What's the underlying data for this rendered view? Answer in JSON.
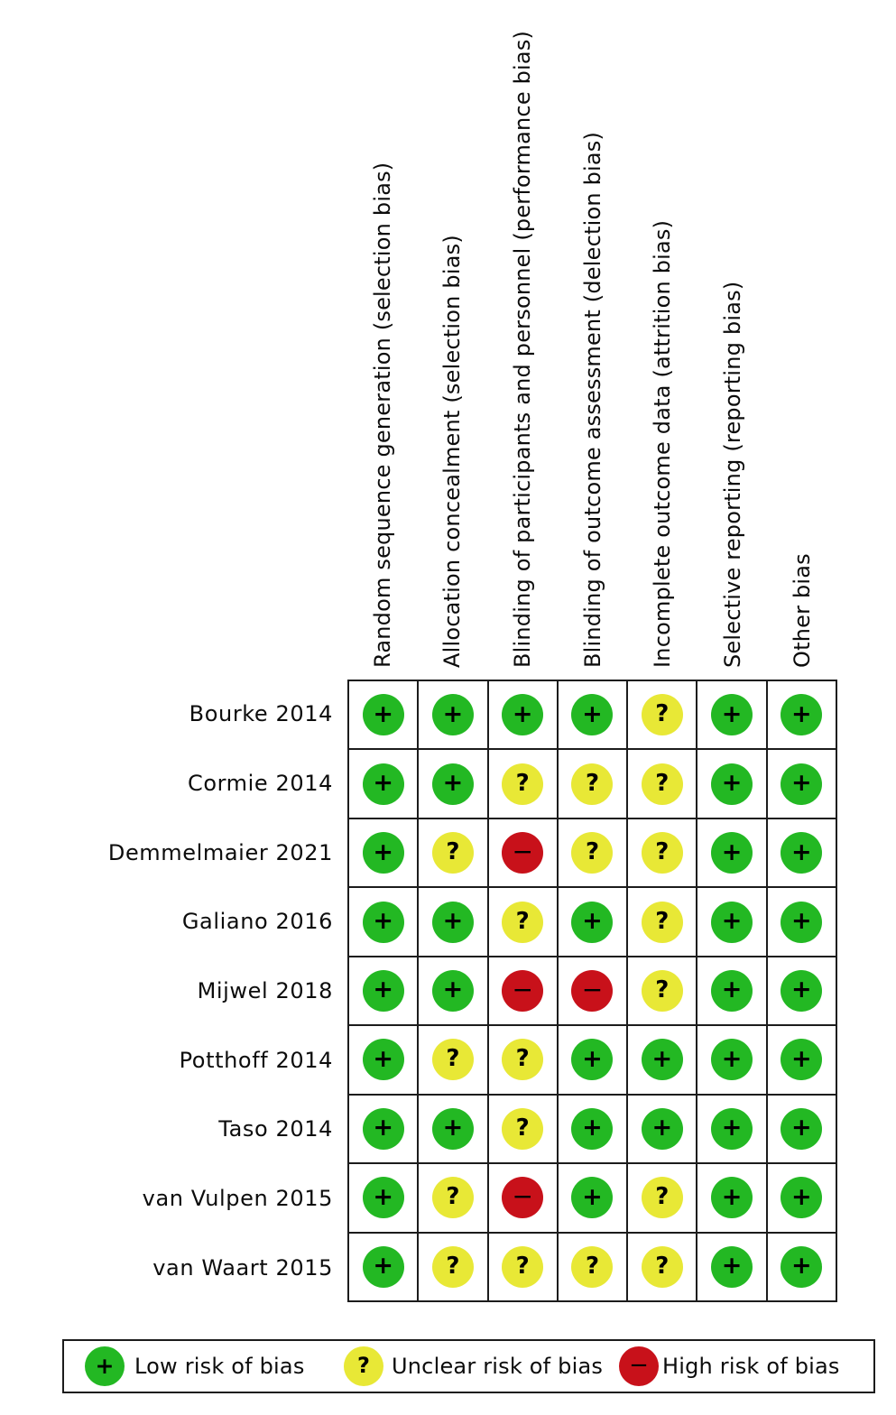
{
  "chart_data": {
    "type": "heatmap",
    "columns": [
      "Random sequence generation (selection bias)",
      "Allocation concealment (selection bias)",
      "Blinding of participants and personnel (performance bias)",
      "Blinding of outcome assessment (delection bias)",
      "Incomplete outcome data (attrition bias)",
      "Selective reporting (reporting bias)",
      "Other bias"
    ],
    "rows": [
      "Bourke 2014",
      "Cormie 2014",
      "Demmelmaier 2021",
      "Galiano 2016",
      "Mijwel 2018",
      "Potthoff 2014",
      "Taso 2014",
      "van Vulpen 2015",
      "van Waart 2015"
    ],
    "values": [
      [
        "+",
        "+",
        "+",
        "+",
        "?",
        "+",
        "+"
      ],
      [
        "+",
        "+",
        "?",
        "?",
        "?",
        "+",
        "+"
      ],
      [
        "+",
        "?",
        "-",
        "?",
        "?",
        "+",
        "+"
      ],
      [
        "+",
        "+",
        "?",
        "+",
        "?",
        "+",
        "+"
      ],
      [
        "+",
        "+",
        "-",
        "-",
        "?",
        "+",
        "+"
      ],
      [
        "+",
        "?",
        "?",
        "+",
        "+",
        "+",
        "+"
      ],
      [
        "+",
        "+",
        "?",
        "+",
        "+",
        "+",
        "+"
      ],
      [
        "+",
        "?",
        "-",
        "+",
        "?",
        "+",
        "+"
      ],
      [
        "+",
        "?",
        "?",
        "?",
        "?",
        "+",
        "+"
      ]
    ],
    "judgement_names": {
      "+": "low-risk",
      "?": "unclear-risk",
      "-": "high-risk"
    }
  },
  "legend": {
    "items": [
      {
        "symbol": "+",
        "label": "Low risk of bias",
        "color": "#23b823"
      },
      {
        "symbol": "?",
        "label": "Unclear risk of bias",
        "color": "#e8e836"
      },
      {
        "symbol": "-",
        "label": "High risk of bias",
        "color": "#c8111a"
      }
    ]
  },
  "colors": {
    "low_risk": "#23b823",
    "unclear_risk": "#e8e836",
    "high_risk": "#c8111a",
    "grid_line": "#1c1c1c",
    "text": "#0c0c0c",
    "background": "#ffffff"
  }
}
